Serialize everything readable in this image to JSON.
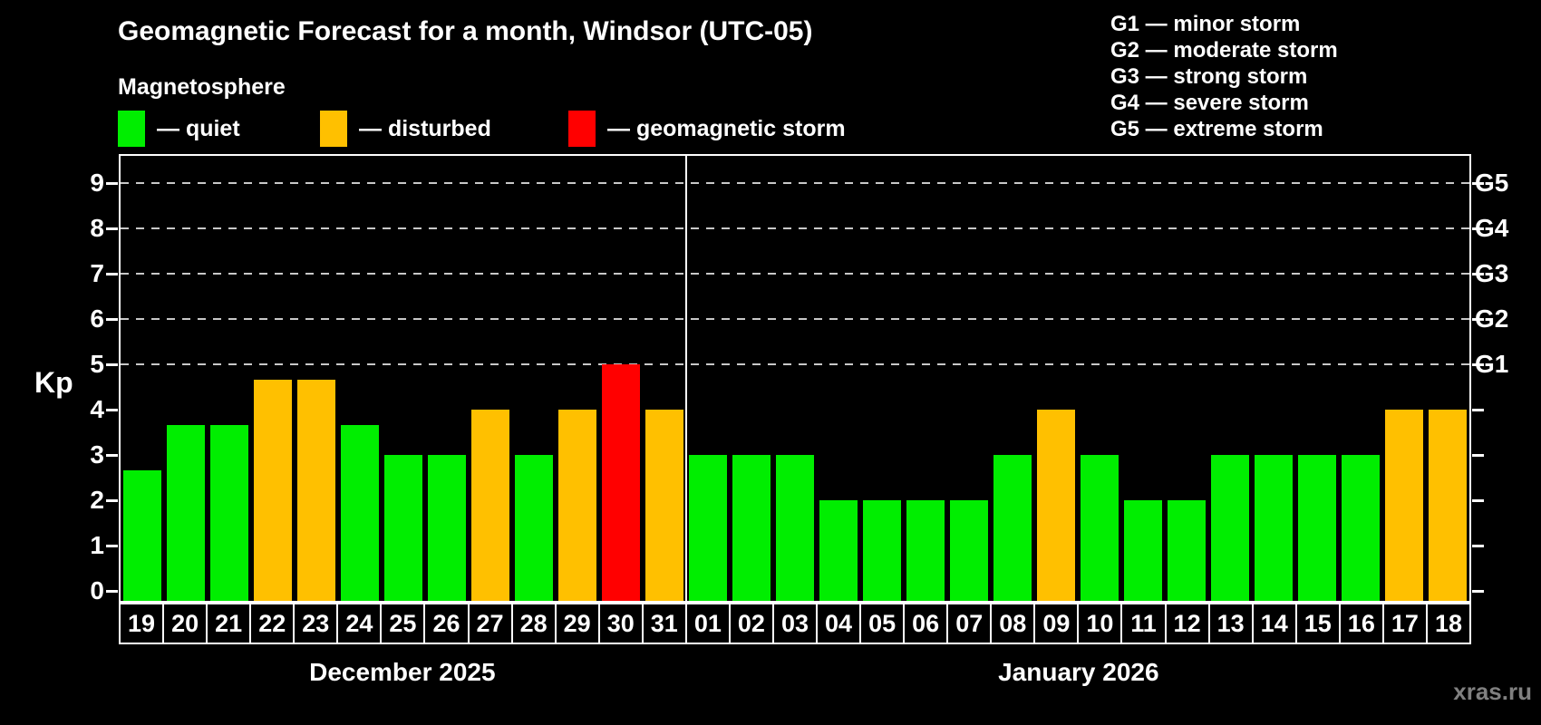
{
  "header": {
    "title": "Geomagnetic Forecast for a month, Windsor (UTC-05)",
    "subtitle": "Magnetosphere",
    "watermark": "xras.ru"
  },
  "legend": {
    "items": [
      {
        "key": "quiet",
        "label": "— quiet",
        "color": "#00ee00"
      },
      {
        "key": "disturbed",
        "label": "— disturbed",
        "color": "#ffc000"
      },
      {
        "key": "storm",
        "label": "— geomagnetic storm",
        "color": "#ff0000"
      }
    ]
  },
  "storm_scale_legend": {
    "lines": [
      "G1 — minor storm",
      "G2 — moderate storm",
      "G3 — strong storm",
      "G4 — severe storm",
      "G5 — extreme storm"
    ]
  },
  "colors": {
    "quiet": "#00ee00",
    "disturbed": "#ffc000",
    "storm": "#ff0000",
    "grid": "#c8c8c8",
    "axis": "#ffffff",
    "watermark": "#808080"
  },
  "chart_data": {
    "type": "bar",
    "ylabel": "Kp",
    "ylim": [
      -0.25,
      9.65
    ],
    "y_ticks": [
      0,
      1,
      2,
      3,
      4,
      5,
      6,
      7,
      8,
      9
    ],
    "gridlines_kp": [
      5,
      6,
      7,
      8,
      9
    ],
    "grid": "dashed horizontal at Kp 5-9 only",
    "legend_position": "top",
    "right_axis": [
      {
        "label": "G1",
        "kp": 5
      },
      {
        "label": "G2",
        "kp": 6
      },
      {
        "label": "G3",
        "kp": 7
      },
      {
        "label": "G4",
        "kp": 8
      },
      {
        "label": "G5",
        "kp": 9
      }
    ],
    "months": [
      {
        "label": "December 2025",
        "days": [
          {
            "day": "19",
            "kp": 2.67,
            "status": "quiet"
          },
          {
            "day": "20",
            "kp": 3.67,
            "status": "quiet"
          },
          {
            "day": "21",
            "kp": 3.67,
            "status": "quiet"
          },
          {
            "day": "22",
            "kp": 4.67,
            "status": "disturbed"
          },
          {
            "day": "23",
            "kp": 4.67,
            "status": "disturbed"
          },
          {
            "day": "24",
            "kp": 3.67,
            "status": "quiet"
          },
          {
            "day": "25",
            "kp": 3,
            "status": "quiet"
          },
          {
            "day": "26",
            "kp": 3,
            "status": "quiet"
          },
          {
            "day": "27",
            "kp": 4,
            "status": "disturbed"
          },
          {
            "day": "28",
            "kp": 3,
            "status": "quiet"
          },
          {
            "day": "29",
            "kp": 4,
            "status": "disturbed"
          },
          {
            "day": "30",
            "kp": 5,
            "status": "storm"
          },
          {
            "day": "31",
            "kp": 4,
            "status": "disturbed"
          }
        ]
      },
      {
        "label": "January 2026",
        "days": [
          {
            "day": "01",
            "kp": 3,
            "status": "quiet"
          },
          {
            "day": "02",
            "kp": 3,
            "status": "quiet"
          },
          {
            "day": "03",
            "kp": 3,
            "status": "quiet"
          },
          {
            "day": "04",
            "kp": 2,
            "status": "quiet"
          },
          {
            "day": "05",
            "kp": 2,
            "status": "quiet"
          },
          {
            "day": "06",
            "kp": 2,
            "status": "quiet"
          },
          {
            "day": "07",
            "kp": 2,
            "status": "quiet"
          },
          {
            "day": "08",
            "kp": 3,
            "status": "quiet"
          },
          {
            "day": "09",
            "kp": 4,
            "status": "disturbed"
          },
          {
            "day": "10",
            "kp": 3,
            "status": "quiet"
          },
          {
            "day": "11",
            "kp": 2,
            "status": "quiet"
          },
          {
            "day": "12",
            "kp": 2,
            "status": "quiet"
          },
          {
            "day": "13",
            "kp": 3,
            "status": "quiet"
          },
          {
            "day": "14",
            "kp": 3,
            "status": "quiet"
          },
          {
            "day": "15",
            "kp": 3,
            "status": "quiet"
          },
          {
            "day": "16",
            "kp": 3,
            "status": "quiet"
          },
          {
            "day": "17",
            "kp": 4,
            "status": "disturbed"
          },
          {
            "day": "18",
            "kp": 4,
            "status": "disturbed"
          }
        ]
      }
    ]
  }
}
